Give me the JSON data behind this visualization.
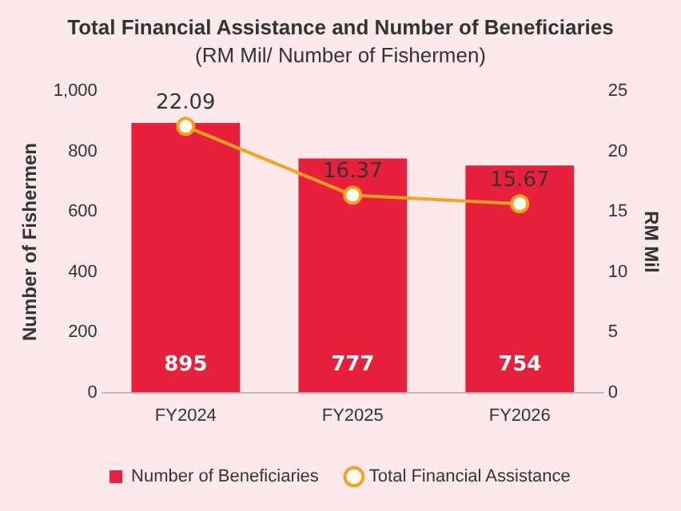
{
  "chart_data": {
    "type": "bar",
    "title": "Total Financial Assistance and Number of Beneficiaries",
    "subtitle": "(RM Mil/ Number of Fishermen)",
    "ylabel": "Number of Fishermen",
    "y2label": "RM Mil",
    "categories": [
      "FY2024",
      "FY2025",
      "FY2026"
    ],
    "series": [
      {
        "name": "Number of Beneficiaries",
        "color": "#e8203c",
        "values": [
          895,
          777,
          754
        ]
      },
      {
        "name": "Total Financial Assistance",
        "type": "line",
        "axis": "y2",
        "color": "#f5a21c",
        "values": [
          22.09,
          16.37,
          15.67
        ]
      }
    ],
    "ylim": [
      0,
      1000
    ],
    "yticks": [
      0,
      200,
      400,
      600,
      800,
      {
        "value": 1000,
        "label": "1,000"
      }
    ],
    "y2lim": [
      0,
      25
    ],
    "y2ticks": [
      0,
      5,
      10,
      15,
      20,
      25
    ],
    "grid": false,
    "legend": "bottom",
    "marker": "circle",
    "data_labels": true
  }
}
